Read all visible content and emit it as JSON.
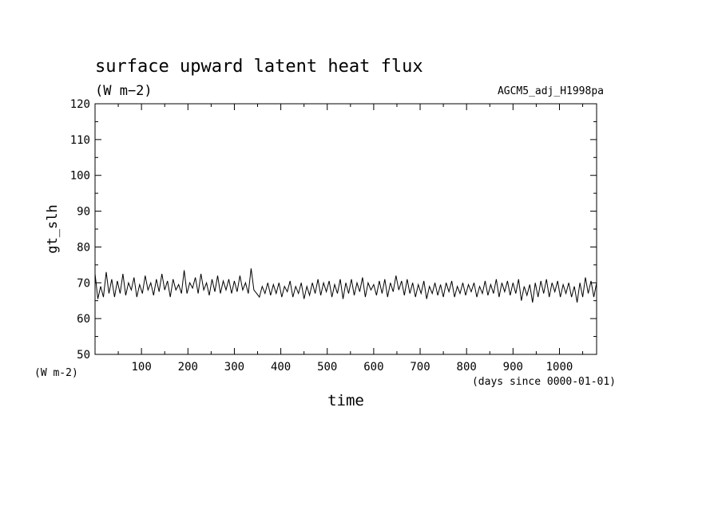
{
  "chart_data": {
    "type": "line",
    "title": "surface upward latent heat flux",
    "title_units": "(W m−2)",
    "dataset": "AGCM5_adj_H1998pa",
    "ylabel": "gt_slh",
    "y_units": "(W m-2)",
    "xlabel": "time",
    "x_units": "(days since 0000-01-01)",
    "xlim": [
      0,
      1080
    ],
    "ylim": [
      50,
      120
    ],
    "x_ticks": [
      100,
      200,
      300,
      400,
      500,
      600,
      700,
      800,
      900,
      1000
    ],
    "y_ticks": [
      50,
      60,
      70,
      80,
      90,
      100,
      110,
      120
    ],
    "grid": false,
    "series": [
      {
        "values": [
          [
            0,
            72.5
          ],
          [
            6,
            65.5
          ],
          [
            12,
            69
          ],
          [
            18,
            66
          ],
          [
            24,
            73
          ],
          [
            30,
            67
          ],
          [
            36,
            71
          ],
          [
            42,
            66
          ],
          [
            48,
            70.5
          ],
          [
            54,
            67
          ],
          [
            60,
            72.5
          ],
          [
            66,
            66.5
          ],
          [
            72,
            70
          ],
          [
            78,
            68
          ],
          [
            84,
            71.5
          ],
          [
            90,
            66
          ],
          [
            96,
            69.5
          ],
          [
            102,
            67
          ],
          [
            108,
            72
          ],
          [
            114,
            68
          ],
          [
            120,
            70
          ],
          [
            126,
            66.5
          ],
          [
            132,
            71
          ],
          [
            138,
            67.5
          ],
          [
            144,
            72.5
          ],
          [
            150,
            68
          ],
          [
            156,
            70.5
          ],
          [
            162,
            66
          ],
          [
            168,
            71
          ],
          [
            174,
            68
          ],
          [
            180,
            69.5
          ],
          [
            186,
            67
          ],
          [
            192,
            73.5
          ],
          [
            198,
            67
          ],
          [
            204,
            70
          ],
          [
            210,
            68.5
          ],
          [
            216,
            71.5
          ],
          [
            222,
            67
          ],
          [
            228,
            72.5
          ],
          [
            234,
            68
          ],
          [
            240,
            70
          ],
          [
            246,
            66.5
          ],
          [
            252,
            71
          ],
          [
            258,
            67.5
          ],
          [
            264,
            72
          ],
          [
            270,
            67
          ],
          [
            276,
            70.5
          ],
          [
            282,
            68
          ],
          [
            288,
            71
          ],
          [
            294,
            67
          ],
          [
            300,
            70.5
          ],
          [
            306,
            67.5
          ],
          [
            312,
            72
          ],
          [
            318,
            68
          ],
          [
            324,
            70
          ],
          [
            330,
            67
          ],
          [
            336,
            74
          ],
          [
            342,
            68
          ],
          [
            348,
            67
          ],
          [
            354,
            66
          ],
          [
            360,
            69
          ],
          [
            366,
            67
          ],
          [
            372,
            70
          ],
          [
            378,
            66.5
          ],
          [
            384,
            69.5
          ],
          [
            390,
            67
          ],
          [
            396,
            70
          ],
          [
            402,
            66
          ],
          [
            408,
            69
          ],
          [
            414,
            67.5
          ],
          [
            420,
            70.5
          ],
          [
            426,
            66
          ],
          [
            432,
            69
          ],
          [
            438,
            67
          ],
          [
            444,
            70
          ],
          [
            450,
            65.5
          ],
          [
            456,
            69
          ],
          [
            462,
            66.5
          ],
          [
            468,
            70
          ],
          [
            474,
            67
          ],
          [
            480,
            71
          ],
          [
            486,
            66.5
          ],
          [
            492,
            70
          ],
          [
            498,
            67.5
          ],
          [
            504,
            70.5
          ],
          [
            510,
            66
          ],
          [
            516,
            69.5
          ],
          [
            522,
            67
          ],
          [
            528,
            71
          ],
          [
            534,
            65.5
          ],
          [
            540,
            70
          ],
          [
            546,
            67
          ],
          [
            552,
            71
          ],
          [
            558,
            66.5
          ],
          [
            564,
            70
          ],
          [
            570,
            67.5
          ],
          [
            576,
            71.5
          ],
          [
            582,
            66
          ],
          [
            588,
            70
          ],
          [
            594,
            68
          ],
          [
            600,
            69.5
          ],
          [
            606,
            66.5
          ],
          [
            612,
            70.5
          ],
          [
            618,
            67
          ],
          [
            624,
            71
          ],
          [
            630,
            66
          ],
          [
            636,
            70
          ],
          [
            642,
            67.5
          ],
          [
            648,
            72
          ],
          [
            654,
            68
          ],
          [
            660,
            70.5
          ],
          [
            666,
            66.5
          ],
          [
            672,
            71
          ],
          [
            678,
            67
          ],
          [
            684,
            70
          ],
          [
            690,
            66
          ],
          [
            696,
            69.5
          ],
          [
            702,
            67
          ],
          [
            708,
            70.5
          ],
          [
            714,
            65.5
          ],
          [
            720,
            69
          ],
          [
            726,
            67
          ],
          [
            732,
            70
          ],
          [
            738,
            66.5
          ],
          [
            744,
            69.5
          ],
          [
            750,
            66
          ],
          [
            756,
            70
          ],
          [
            762,
            67.5
          ],
          [
            768,
            70.5
          ],
          [
            774,
            66
          ],
          [
            780,
            69
          ],
          [
            786,
            67
          ],
          [
            792,
            70
          ],
          [
            798,
            66.5
          ],
          [
            804,
            69.5
          ],
          [
            810,
            67.5
          ],
          [
            816,
            70
          ],
          [
            822,
            66
          ],
          [
            828,
            69
          ],
          [
            834,
            67
          ],
          [
            840,
            70.5
          ],
          [
            846,
            66.5
          ],
          [
            852,
            69.5
          ],
          [
            858,
            67
          ],
          [
            864,
            71
          ],
          [
            870,
            66
          ],
          [
            876,
            70
          ],
          [
            882,
            67.5
          ],
          [
            888,
            70.5
          ],
          [
            894,
            66.5
          ],
          [
            900,
            70
          ],
          [
            906,
            67
          ],
          [
            912,
            71
          ],
          [
            918,
            65
          ],
          [
            924,
            69
          ],
          [
            930,
            66.5
          ],
          [
            936,
            69.5
          ],
          [
            942,
            64.5
          ],
          [
            948,
            70
          ],
          [
            954,
            66
          ],
          [
            960,
            70.5
          ],
          [
            966,
            67
          ],
          [
            972,
            71
          ],
          [
            978,
            66
          ],
          [
            984,
            70
          ],
          [
            990,
            67.5
          ],
          [
            996,
            70.5
          ],
          [
            1002,
            66
          ],
          [
            1008,
            69.5
          ],
          [
            1014,
            67
          ],
          [
            1020,
            70
          ],
          [
            1026,
            66
          ],
          [
            1032,
            69
          ],
          [
            1038,
            64.5
          ],
          [
            1044,
            70
          ],
          [
            1050,
            66
          ],
          [
            1056,
            71.5
          ],
          [
            1062,
            67
          ],
          [
            1068,
            70.5
          ],
          [
            1074,
            66
          ],
          [
            1080,
            70
          ]
        ]
      }
    ]
  }
}
